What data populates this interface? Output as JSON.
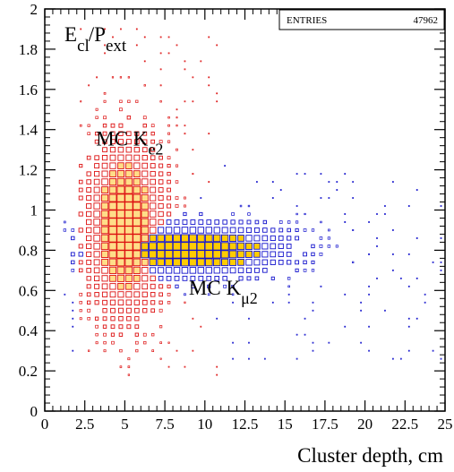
{
  "chart_data": {
    "type": "scatter",
    "title": "E_cl/P_ext",
    "title_parts": {
      "main1": "E",
      "sub1": "cl",
      "main2": "/P",
      "sub2": "ext"
    },
    "xlabel": "Cluster depth, cm",
    "ylabel": "",
    "xlim": [
      0,
      25
    ],
    "ylim": [
      0,
      2
    ],
    "x_ticks": [
      0,
      2.5,
      5,
      7.5,
      10,
      12.5,
      15,
      17.5,
      20,
      22.5,
      25
    ],
    "x_tick_labels": [
      "0",
      "2.5",
      "5",
      "7.5",
      "10",
      "12.5",
      "15",
      "17.5",
      "20",
      "22.5",
      "25"
    ],
    "y_ticks": [
      0,
      0.2,
      0.4,
      0.6,
      0.8,
      1.0,
      1.2,
      1.4,
      1.6,
      1.8,
      2.0
    ],
    "y_tick_labels": [
      "0",
      "0.2",
      "0.4",
      "0.6",
      "0.8",
      "1",
      "1.2",
      "1.4",
      "1.6",
      "1.8",
      "2"
    ],
    "stats_box": {
      "label": "ENTRIES",
      "value": "47962"
    },
    "annotations": [
      {
        "main": "MC K",
        "sub": "e2",
        "x": 3.2,
        "y": 1.32
      },
      {
        "main": "MC K",
        "sub": "μ2",
        "x": 9.0,
        "y": 0.58
      }
    ],
    "series": [
      {
        "name": "MC Ke2",
        "color": "#dd1111",
        "peak": {
          "x": 5.0,
          "y": 0.92
        },
        "spread": {
          "x": 1.6,
          "y": 0.28
        },
        "x_range": [
          2.2,
          11.0
        ],
        "y_range": [
          0.15,
          1.92
        ]
      },
      {
        "name": "MCμ2",
        "color": "#1111cc",
        "peak": {
          "x": 9.0,
          "y": 0.8
        },
        "spread": {
          "x": 4.0,
          "y": 0.09
        },
        "x_range": [
          1.0,
          25.0
        ],
        "y_range": [
          0.25,
          1.25
        ]
      }
    ],
    "peak_fill_color": "#ffcc00",
    "grid": false,
    "legend": "none"
  }
}
